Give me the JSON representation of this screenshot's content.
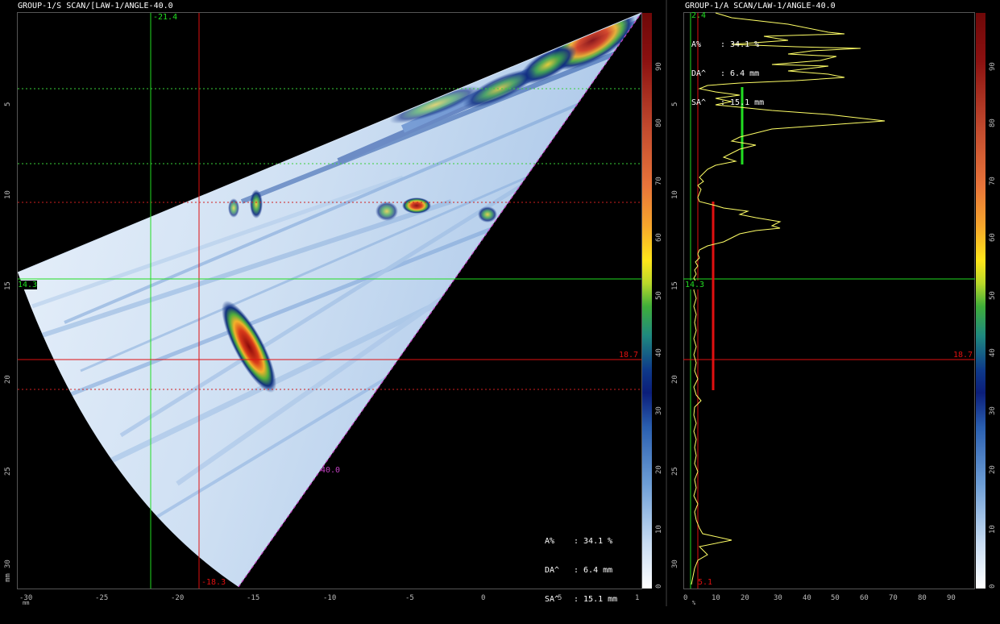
{
  "sscan": {
    "title": "GROUP-1/S SCAN/[LAW-1/ANGLE-40.0",
    "cursors": {
      "green_v_label": "-21.4",
      "red_v_label": "-18.3",
      "green_h_label": "14.3",
      "red_h_label": "18.7"
    },
    "angle_label": "40.0",
    "readout": {
      "a_label": "A%",
      "a_value": ": 34.1 %",
      "da_label": "DA^",
      "da_value": ": 6.4 mm",
      "sa_label": "SA^",
      "sa_value": ": 15.1 mm"
    },
    "y_axis_unit": "mm",
    "y_ticks": [
      "5",
      "10",
      "15",
      "20",
      "25",
      "30"
    ],
    "x_axis_unit": "mm",
    "x_ticks": [
      "-30",
      "-25",
      "-20",
      "-15",
      "-10",
      "-5",
      "0",
      "5",
      "1"
    ],
    "colorbar_ticks": [
      "0",
      "10",
      "20",
      "30",
      "40",
      "50",
      "60",
      "70",
      "80",
      "90"
    ]
  },
  "ascan": {
    "title": "GROUP-1/A SCAN/LAW-1/ANGLE-40.0",
    "readout": {
      "a_label": "A%",
      "a_value": ": 34.1 %",
      "da_label": "DA^",
      "da_value": ": 6.4 mm",
      "sa_label": "SA^",
      "sa_value": ": 15.1 mm"
    },
    "cursors": {
      "green_h_label": "14.3",
      "red_h_label": "18.7",
      "green_top_label": "2.4",
      "red_bottom_label": "5.1"
    },
    "y_ticks": [
      "5",
      "10",
      "15",
      "20",
      "25",
      "30"
    ],
    "x_axis_unit": "%",
    "x_ticks": [
      "0",
      "10",
      "20",
      "30",
      "40",
      "50",
      "60",
      "70",
      "80",
      "90"
    ],
    "colorbar_ticks": [
      "0",
      "10",
      "20",
      "30",
      "40",
      "50",
      "60",
      "70",
      "80",
      "90"
    ],
    "colors": {
      "trace": "#ffff66",
      "gate_green": "#22dd22",
      "gate_red": "#e01010"
    }
  }
}
